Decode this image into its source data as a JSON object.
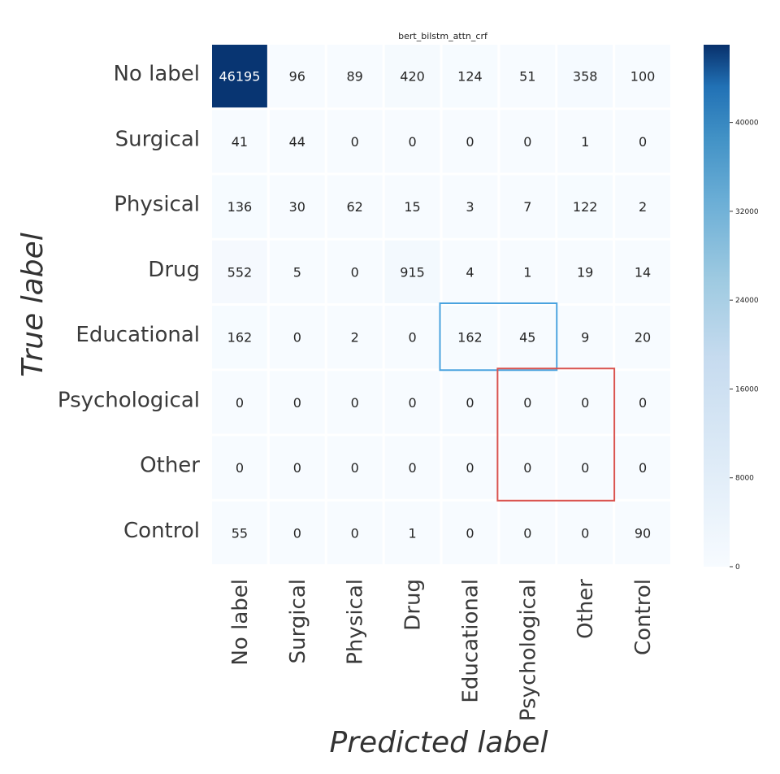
{
  "chart_data": {
    "type": "heatmap",
    "title": "bert_bilstm_attn_crf",
    "xlabel": "Predicted label",
    "ylabel": "True label",
    "row_labels": [
      "No label",
      "Surgical",
      "Physical",
      "Drug",
      "Educational",
      "Psychological",
      "Other",
      "Control"
    ],
    "col_labels": [
      "No label",
      "Surgical",
      "Physical",
      "Drug",
      "Educational",
      "Psychological",
      "Other",
      "Control"
    ],
    "values": [
      [
        46195,
        96,
        89,
        420,
        124,
        51,
        358,
        100
      ],
      [
        41,
        44,
        0,
        0,
        0,
        0,
        1,
        0
      ],
      [
        136,
        30,
        62,
        15,
        3,
        7,
        122,
        2
      ],
      [
        552,
        5,
        0,
        915,
        4,
        1,
        19,
        14
      ],
      [
        162,
        0,
        2,
        0,
        162,
        45,
        9,
        20
      ],
      [
        0,
        0,
        0,
        0,
        0,
        0,
        0,
        0
      ],
      [
        0,
        0,
        0,
        0,
        0,
        0,
        0,
        0
      ],
      [
        55,
        0,
        0,
        1,
        0,
        0,
        0,
        90
      ]
    ],
    "colorbar": {
      "range": [
        0,
        47000
      ],
      "ticks": [
        0,
        8000,
        16000,
        24000,
        32000,
        40000
      ],
      "tick_labels": [
        "0",
        "8000",
        "16000",
        "24000",
        "32000",
        "40000"
      ],
      "colormap": "Blues"
    },
    "annotations": [
      {
        "type": "rectangle",
        "color": "#4aa3df",
        "rows": [
          4,
          4
        ],
        "cols": [
          4,
          5
        ]
      },
      {
        "type": "rectangle",
        "color": "#d9534f",
        "rows": [
          5,
          6
        ],
        "cols": [
          5,
          6
        ]
      }
    ]
  }
}
